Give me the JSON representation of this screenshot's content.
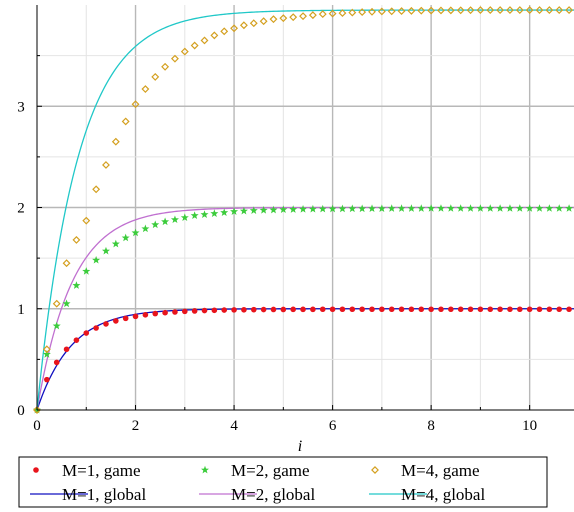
{
  "chart_data": {
    "type": "line",
    "title": "",
    "xlabel": "i",
    "ylabel": "",
    "xlim": [
      0,
      10.9
    ],
    "ylim": [
      0,
      4.0
    ],
    "x_ticks": [
      0,
      2,
      4,
      6,
      8,
      10
    ],
    "y_ticks": [
      0,
      1,
      2,
      3
    ],
    "x_tick_labels": [
      "0",
      "2",
      "4",
      "6",
      "8",
      "10"
    ],
    "y_tick_labels": [
      "0",
      "1",
      "2",
      "3"
    ],
    "grid": true,
    "legend_position": "bottom",
    "series": [
      {
        "name": "M=1, game",
        "kind": "scatter",
        "marker": "circle",
        "color": "#e8141c",
        "x": [
          0,
          0.2,
          0.4,
          0.6,
          0.8,
          1.0,
          1.2,
          1.4,
          1.6,
          1.8,
          2.0,
          2.2,
          2.4,
          2.6,
          2.8,
          3.0,
          3.2,
          3.4,
          3.6,
          3.8,
          4.0,
          4.2,
          4.4,
          4.6,
          4.8,
          5.0,
          5.2,
          5.4,
          5.6,
          5.8,
          6.0,
          6.2,
          6.4,
          6.6,
          6.8,
          7.0,
          7.2,
          7.4,
          7.6,
          7.8,
          8.0,
          8.2,
          8.4,
          8.6,
          8.8,
          9.0,
          9.2,
          9.4,
          9.6,
          9.8,
          10.0,
          10.2,
          10.4,
          10.6,
          10.8
        ],
        "y": [
          0,
          0.3,
          0.47,
          0.6,
          0.69,
          0.76,
          0.81,
          0.85,
          0.88,
          0.905,
          0.925,
          0.94,
          0.952,
          0.961,
          0.968,
          0.974,
          0.978,
          0.982,
          0.985,
          0.987,
          0.989,
          0.99,
          0.991,
          0.992,
          0.993,
          0.993,
          0.994,
          0.994,
          0.994,
          0.995,
          0.995,
          0.995,
          0.995,
          0.995,
          0.995,
          0.995,
          0.995,
          0.995,
          0.995,
          0.995,
          0.995,
          0.995,
          0.995,
          0.995,
          0.995,
          0.995,
          0.995,
          0.995,
          0.995,
          0.995,
          0.995,
          0.995,
          0.995,
          0.995,
          0.995
        ]
      },
      {
        "name": "M=2, game",
        "kind": "scatter",
        "marker": "star",
        "color": "#3ccc3c",
        "x": [
          0,
          0.2,
          0.4,
          0.6,
          0.8,
          1.0,
          1.2,
          1.4,
          1.6,
          1.8,
          2.0,
          2.2,
          2.4,
          2.6,
          2.8,
          3.0,
          3.2,
          3.4,
          3.6,
          3.8,
          4.0,
          4.2,
          4.4,
          4.6,
          4.8,
          5.0,
          5.2,
          5.4,
          5.6,
          5.8,
          6.0,
          6.2,
          6.4,
          6.6,
          6.8,
          7.0,
          7.2,
          7.4,
          7.6,
          7.8,
          8.0,
          8.2,
          8.4,
          8.6,
          8.8,
          9.0,
          9.2,
          9.4,
          9.6,
          9.8,
          10.0,
          10.2,
          10.4,
          10.6,
          10.8
        ],
        "y": [
          0,
          0.55,
          0.83,
          1.05,
          1.23,
          1.37,
          1.48,
          1.57,
          1.64,
          1.7,
          1.75,
          1.79,
          1.83,
          1.86,
          1.88,
          1.9,
          1.92,
          1.93,
          1.94,
          1.95,
          1.96,
          1.965,
          1.97,
          1.973,
          1.976,
          1.979,
          1.981,
          1.983,
          1.984,
          1.985,
          1.986,
          1.987,
          1.988,
          1.988,
          1.989,
          1.989,
          1.99,
          1.99,
          1.99,
          1.99,
          1.991,
          1.991,
          1.991,
          1.991,
          1.991,
          1.991,
          1.991,
          1.991,
          1.991,
          1.991,
          1.991,
          1.991,
          1.991,
          1.991,
          1.991
        ]
      },
      {
        "name": "M=4, game",
        "kind": "scatter",
        "marker": "diamond",
        "color": "#d4a020",
        "x": [
          0,
          0.2,
          0.4,
          0.6,
          0.8,
          1.0,
          1.2,
          1.4,
          1.6,
          1.8,
          2.0,
          2.2,
          2.4,
          2.6,
          2.8,
          3.0,
          3.2,
          3.4,
          3.6,
          3.8,
          4.0,
          4.2,
          4.4,
          4.6,
          4.8,
          5.0,
          5.2,
          5.4,
          5.6,
          5.8,
          6.0,
          6.2,
          6.4,
          6.6,
          6.8,
          7.0,
          7.2,
          7.4,
          7.6,
          7.8,
          8.0,
          8.2,
          8.4,
          8.6,
          8.8,
          9.0,
          9.2,
          9.4,
          9.6,
          9.8,
          10.0,
          10.2,
          10.4,
          10.6,
          10.8
        ],
        "y": [
          0,
          0.6,
          1.05,
          1.45,
          1.68,
          1.87,
          2.18,
          2.42,
          2.65,
          2.85,
          3.02,
          3.17,
          3.29,
          3.39,
          3.47,
          3.54,
          3.6,
          3.65,
          3.7,
          3.74,
          3.77,
          3.8,
          3.82,
          3.84,
          3.86,
          3.87,
          3.88,
          3.89,
          3.9,
          3.91,
          3.915,
          3.92,
          3.925,
          3.93,
          3.933,
          3.936,
          3.938,
          3.94,
          3.942,
          3.944,
          3.945,
          3.946,
          3.947,
          3.948,
          3.949,
          3.95,
          3.95,
          3.95,
          3.95,
          3.95,
          3.95,
          3.95,
          3.95,
          3.95,
          3.95
        ]
      },
      {
        "name": "M=1, global",
        "kind": "line",
        "color": "#1010c0",
        "asymptote": 1.0,
        "rate": 1.45,
        "x_range": [
          0,
          10.9
        ]
      },
      {
        "name": "M=2, global",
        "kind": "line",
        "color": "#c070d0",
        "asymptote": 2.0,
        "rate": 1.4,
        "x_range": [
          0,
          10.9
        ]
      },
      {
        "name": "M=4, global",
        "kind": "line",
        "color": "#20c8c8",
        "asymptote": 3.95,
        "rate": 1.2,
        "x_range": [
          0,
          10.9
        ]
      }
    ]
  }
}
